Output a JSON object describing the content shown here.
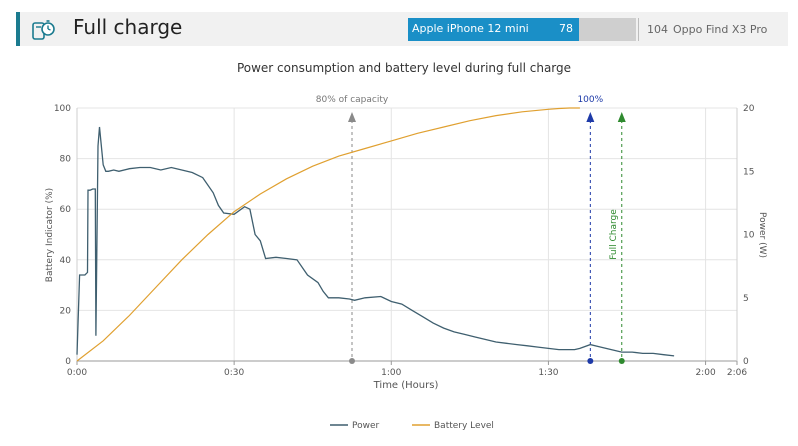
{
  "header": {
    "title": "Full charge",
    "icon": "stopwatch-phone-icon",
    "accent_color": "#1b7b8f"
  },
  "comparison": {
    "primary": {
      "label": "Apple iPhone 12 mini",
      "value": "78",
      "color": "#1a8fc7",
      "fraction": 0.75
    },
    "secondary": {
      "label": "Oppo Find X3 Pro",
      "value": "104"
    }
  },
  "chart_data": {
    "type": "line",
    "title": "Power consumption and battery level during full charge",
    "xlabel": "Time (Hours)",
    "ylabel_left": "Battery Indicator (%)",
    "ylabel_right": "Power (W)",
    "x_unit": "minutes",
    "xlim": [
      0,
      126
    ],
    "ylim_left": [
      0,
      100
    ],
    "ylim_right": [
      0,
      20
    ],
    "x_ticks": [
      {
        "value": 0,
        "label": "0:00"
      },
      {
        "value": 30,
        "label": "0:30"
      },
      {
        "value": 60,
        "label": "1:00"
      },
      {
        "value": 90,
        "label": "1:30"
      },
      {
        "value": 120,
        "label": "2:00"
      },
      {
        "value": 126,
        "label": "2:06"
      }
    ],
    "y_ticks_left": [
      0,
      20,
      40,
      60,
      80,
      100
    ],
    "y_ticks_right": [
      0,
      5,
      10,
      15,
      20
    ],
    "grid": true,
    "legend_position": "bottom-center",
    "series": [
      {
        "name": "Power",
        "axis": "right",
        "color": "#3f5f6f",
        "x": [
          0,
          0.5,
          1.5,
          2,
          2.1,
          2.5,
          3,
          3.5,
          3.6,
          4,
          4.3,
          5,
          5.5,
          6,
          7,
          8,
          10,
          12,
          14,
          16,
          18,
          20,
          22,
          24,
          26,
          27,
          28,
          30,
          32,
          33,
          34,
          35,
          36,
          38,
          40,
          42,
          44,
          46,
          47,
          48,
          50,
          52,
          53,
          55,
          58,
          60,
          62,
          64,
          66,
          68,
          70,
          72,
          74,
          76,
          78,
          80,
          82,
          84,
          86,
          88,
          90,
          92,
          95,
          96,
          98,
          100,
          102,
          104,
          106,
          108,
          110,
          112,
          114
        ],
        "y": [
          0.5,
          6.8,
          6.8,
          7,
          13.5,
          13.5,
          13.6,
          13.6,
          2,
          17,
          18.5,
          15.5,
          15,
          15,
          15.1,
          15,
          15.2,
          15.3,
          15.3,
          15.1,
          15.3,
          15.1,
          14.9,
          14.5,
          13.3,
          12.3,
          11.7,
          11.6,
          12.2,
          12,
          10,
          9.5,
          8.1,
          8.2,
          8.1,
          8,
          6.8,
          6.2,
          5.5,
          5,
          5,
          4.9,
          4.8,
          5,
          5.1,
          4.7,
          4.5,
          4,
          3.5,
          3,
          2.6,
          2.3,
          2.1,
          1.9,
          1.7,
          1.5,
          1.4,
          1.3,
          1.2,
          1.1,
          1.0,
          0.9,
          0.9,
          1.0,
          1.3,
          1.1,
          0.9,
          0.7,
          0.7,
          0.6,
          0.6,
          0.5,
          0.4
        ]
      },
      {
        "name": "Battery Level",
        "axis": "left",
        "color": "#e0a030",
        "x": [
          0,
          5,
          10,
          15,
          20,
          25,
          30,
          35,
          40,
          45,
          50,
          55,
          60,
          65,
          70,
          75,
          80,
          85,
          90,
          92,
          94,
          96
        ],
        "y": [
          0,
          8,
          18,
          29,
          40,
          50,
          59,
          66,
          72,
          77,
          81,
          84,
          87,
          90,
          92.5,
          95,
          97,
          98.5,
          99.5,
          99.8,
          100,
          100
        ]
      }
    ],
    "markers": [
      {
        "x": 52.5,
        "label": "80% of capacity",
        "color": "#8a8a8a"
      },
      {
        "x": 98,
        "label": "100%",
        "color": "#1e3aa8"
      },
      {
        "x": 104,
        "label": "Full Charge",
        "color": "#2f8a2f"
      }
    ]
  }
}
